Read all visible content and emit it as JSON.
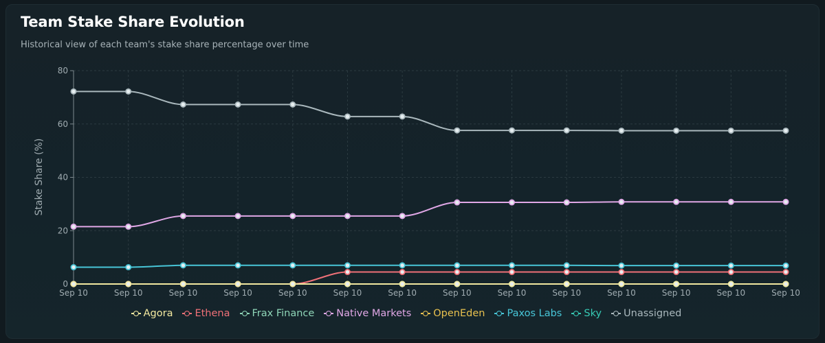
{
  "header": {
    "title": "Team Stake Share Evolution",
    "subtitle": "Historical view of each team's stake share percentage over time"
  },
  "chart_data": {
    "type": "line",
    "title": "Team Stake Share Evolution",
    "subtitle": "Historical view of each team's stake share percentage over time",
    "xlabel": "",
    "ylabel": "Stake Share (%)",
    "ylim": [
      0,
      80
    ],
    "yticks": [
      0,
      20,
      40,
      60,
      80
    ],
    "grid": true,
    "legend_position": "bottom",
    "categories": [
      "Sep 10",
      "Sep 10",
      "Sep 10",
      "Sep 10",
      "Sep 10",
      "Sep 10",
      "Sep 10",
      "Sep 10",
      "Sep 10",
      "Sep 10",
      "Sep 10",
      "Sep 10",
      "Sep 10",
      "Sep 10"
    ],
    "series": [
      {
        "name": "Agora",
        "color": "#f3e9a0",
        "values": [
          0,
          0,
          0,
          0,
          0,
          0,
          0,
          0,
          0,
          0,
          0,
          0,
          0,
          0
        ]
      },
      {
        "name": "Ethena",
        "color": "#f07178",
        "values": [
          0,
          0,
          0,
          0,
          0,
          4.5,
          4.5,
          4.5,
          4.5,
          4.5,
          4.5,
          4.5,
          4.5,
          4.5
        ]
      },
      {
        "name": "Frax Finance",
        "color": "#8fd6b8",
        "values": [
          0,
          0,
          0,
          0,
          0,
          0,
          0,
          0,
          0,
          0,
          0,
          0,
          0,
          0
        ]
      },
      {
        "name": "Native Markets",
        "color": "#e0a7e6",
        "values": [
          21.5,
          21.5,
          25.5,
          25.5,
          25.5,
          25.5,
          25.5,
          30.6,
          30.6,
          30.6,
          30.8,
          30.8,
          30.8,
          30.8
        ]
      },
      {
        "name": "OpenEden",
        "color": "#e8c14f",
        "values": [
          0,
          0,
          0,
          0,
          0,
          0,
          0,
          0,
          0,
          0,
          0,
          0,
          0,
          0
        ]
      },
      {
        "name": "Paxos Labs",
        "color": "#48c6d8",
        "values": [
          6.3,
          6.3,
          7.0,
          7.0,
          7.0,
          7.0,
          7.0,
          7.0,
          7.0,
          7.0,
          6.9,
          6.9,
          6.9,
          6.9
        ]
      },
      {
        "name": "Sky",
        "color": "#36c9b4",
        "values": [
          0,
          0,
          0,
          0,
          0,
          0,
          0,
          0,
          0,
          0,
          0,
          0,
          0,
          0
        ]
      },
      {
        "name": "Unassigned",
        "color": "#aab8bd",
        "values": [
          72.2,
          72.2,
          67.3,
          67.3,
          67.3,
          62.8,
          62.8,
          57.6,
          57.6,
          57.6,
          57.5,
          57.5,
          57.5,
          57.5
        ]
      }
    ]
  }
}
